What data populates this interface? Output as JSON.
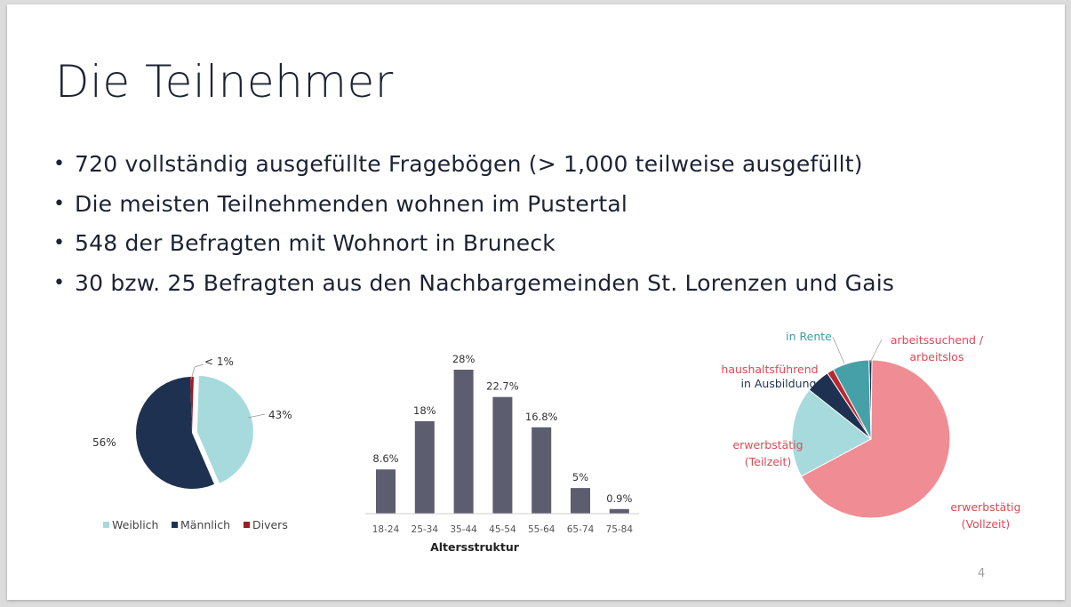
{
  "slide": {
    "title": "Die Teilnehmer",
    "bullets": [
      "720 vollständig ausgefüllte Fragebögen (> 1,000 teilweise ausgefüllt)",
      "Die meisten Teilnehmenden wohnen im Pustertal",
      "548 der Befragten mit Wohnort in Bruneck",
      "30 bzw. 25 Befragten aus den Nachbargemeinden St. Lorenzen und Gais"
    ],
    "page_number": "4"
  },
  "colors": {
    "title_text": "#1c2333",
    "weiblich": "#a7dadd",
    "maennlich": "#1e3150",
    "divers": "#9e1b23",
    "bar": "#5c5e6f",
    "vollzeit": "#f08d94",
    "teilzeit": "#a7dadd",
    "ausbildung": "#1e3150",
    "haushalt": "#b8272f",
    "rente": "#46a0a8",
    "arbeitslos": "#1e3150",
    "label_red": "#d94a55",
    "label_teal": "#3d9aa3"
  },
  "chart_data": [
    {
      "type": "pie",
      "title": "",
      "slices": [
        {
          "name": "Weiblich",
          "value": 43,
          "label": "43%",
          "color_key": "weiblich",
          "exploded": true
        },
        {
          "name": "Männlich",
          "value": 56,
          "label": "56%",
          "color_key": "maennlich",
          "exploded": false
        },
        {
          "name": "Divers",
          "value": 1,
          "label": "< 1%",
          "color_key": "divers",
          "exploded": false
        }
      ],
      "legend": [
        "Weiblich",
        "Männlich",
        "Divers"
      ],
      "legend_position": "bottom"
    },
    {
      "type": "bar",
      "title": "",
      "xlabel": "Altersstruktur",
      "ylabel": "",
      "categories": [
        "18-24",
        "25-34",
        "35-44",
        "45-54",
        "55-64",
        "65-74",
        "75-84"
      ],
      "values": [
        8.6,
        18,
        28,
        22.7,
        16.8,
        5,
        0.9
      ],
      "data_labels": [
        "8.6%",
        "18%",
        "28%",
        "22.7%",
        "16.8%",
        "5%",
        "0.9%"
      ],
      "ylim": [
        0,
        28
      ],
      "grid": false
    },
    {
      "type": "pie",
      "title": "",
      "slices": [
        {
          "name": "arbeitssuchend / arbeitslos",
          "value": 0.6,
          "color_key": "arbeitslos"
        },
        {
          "name": "erwerbstätig (Vollzeit)",
          "value": 67,
          "color_key": "vollzeit"
        },
        {
          "name": "erwerbstätig (Teilzeit)",
          "value": 18.5,
          "color_key": "teilzeit"
        },
        {
          "name": "in Ausbildung",
          "value": 5,
          "color_key": "ausbildung"
        },
        {
          "name": "haushaltsführend",
          "value": 1.4,
          "color_key": "haushalt"
        },
        {
          "name": "in Rente",
          "value": 7.5,
          "color_key": "rente"
        }
      ],
      "labels": {
        "arbeitslos_1": "arbeitssuchend /",
        "arbeitslos_2": "arbeitslos",
        "vollzeit_1": "erwerbstätig",
        "vollzeit_2": "(Vollzeit)",
        "teilzeit_1": "erwerbstätig",
        "teilzeit_2": "(Teilzeit)",
        "ausbildung": "in Ausbildung",
        "haushalt": "haushaltsführend",
        "rente": "in Rente"
      }
    }
  ]
}
